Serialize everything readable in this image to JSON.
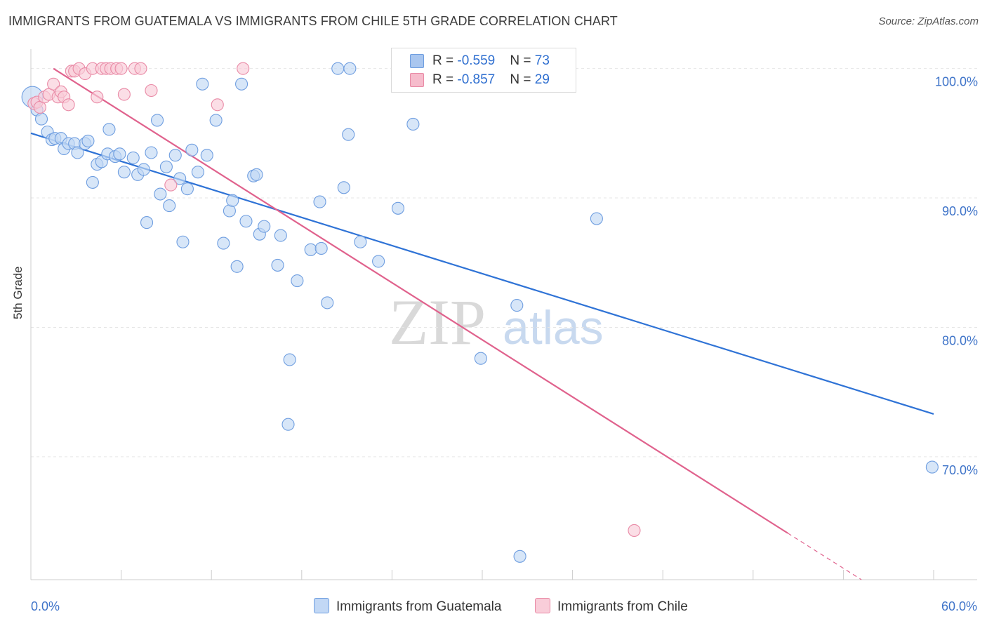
{
  "title": "IMMIGRANTS FROM GUATEMALA VS IMMIGRANTS FROM CHILE 5TH GRADE CORRELATION CHART",
  "source": "Source: ZipAtlas.com",
  "watermark": {
    "zip": "ZIP",
    "atlas": "atlas"
  },
  "stats": [
    {
      "r_label": "R = ",
      "r_value": "-0.559",
      "n_label": "N = ",
      "n_value": "73",
      "color": "#a9c6ef",
      "border": "#6f9ee0"
    },
    {
      "r_label": "R = ",
      "r_value": "-0.857",
      "n_label": "N = ",
      "n_value": "29",
      "color": "#f6bccc",
      "border": "#e98aa6"
    }
  ],
  "legend": [
    {
      "label": "Immigrants from Guatemala",
      "color": "#c2d8f5",
      "border": "#6f9ee0"
    },
    {
      "label": "Immigrants from Chile",
      "color": "#f9cdd9",
      "border": "#e98aa6"
    }
  ],
  "chart_data": {
    "type": "scatter",
    "xlabel": "",
    "ylabel": "5th Grade",
    "xlim": [
      0,
      60
    ],
    "ylim": [
      60.5,
      101.5
    ],
    "x_tick_labels": [
      "0.0%",
      "60.0%"
    ],
    "y_ticks": [
      70,
      80,
      90,
      100
    ],
    "y_tick_labels": [
      "70.0%",
      "80.0%",
      "90.0%",
      "100.0%"
    ],
    "grid": true,
    "legend_position": "bottom",
    "series": [
      {
        "name": "Immigrants from Guatemala",
        "point_color": "#c2d8f5",
        "stroke_color": "#6f9ee0",
        "line_color": "#2f73d6",
        "trend": {
          "x0": 0,
          "y0": 95.0,
          "x1": 60,
          "y1": 73.3
        },
        "points": [
          {
            "x": 0.1,
            "y": 97.8,
            "big": true
          },
          {
            "x": 0.4,
            "y": 96.8
          },
          {
            "x": 0.7,
            "y": 96.1
          },
          {
            "x": 1.1,
            "y": 95.1
          },
          {
            "x": 1.4,
            "y": 94.5
          },
          {
            "x": 1.6,
            "y": 94.6
          },
          {
            "x": 2.0,
            "y": 94.6
          },
          {
            "x": 2.2,
            "y": 93.8
          },
          {
            "x": 2.5,
            "y": 94.2
          },
          {
            "x": 2.9,
            "y": 94.2
          },
          {
            "x": 3.1,
            "y": 93.5
          },
          {
            "x": 3.6,
            "y": 94.2
          },
          {
            "x": 3.8,
            "y": 94.4
          },
          {
            "x": 4.1,
            "y": 91.2
          },
          {
            "x": 4.4,
            "y": 92.6
          },
          {
            "x": 4.7,
            "y": 92.8
          },
          {
            "x": 5.1,
            "y": 93.4
          },
          {
            "x": 5.2,
            "y": 95.3
          },
          {
            "x": 5.6,
            "y": 93.2
          },
          {
            "x": 5.9,
            "y": 93.4
          },
          {
            "x": 6.2,
            "y": 92.0
          },
          {
            "x": 6.8,
            "y": 93.1
          },
          {
            "x": 7.1,
            "y": 91.8
          },
          {
            "x": 7.5,
            "y": 92.2
          },
          {
            "x": 7.7,
            "y": 88.1
          },
          {
            "x": 8.0,
            "y": 93.5
          },
          {
            "x": 8.4,
            "y": 96.0
          },
          {
            "x": 8.6,
            "y": 90.3
          },
          {
            "x": 9.0,
            "y": 92.4
          },
          {
            "x": 9.2,
            "y": 89.4
          },
          {
            "x": 9.6,
            "y": 93.3
          },
          {
            "x": 9.9,
            "y": 91.5
          },
          {
            "x": 10.1,
            "y": 86.6
          },
          {
            "x": 10.4,
            "y": 90.7
          },
          {
            "x": 10.7,
            "y": 93.7
          },
          {
            "x": 11.1,
            "y": 92.0
          },
          {
            "x": 11.4,
            "y": 98.8
          },
          {
            "x": 11.7,
            "y": 93.3
          },
          {
            "x": 12.3,
            "y": 96.0
          },
          {
            "x": 12.8,
            "y": 86.5
          },
          {
            "x": 13.2,
            "y": 89.0
          },
          {
            "x": 13.4,
            "y": 89.8
          },
          {
            "x": 13.7,
            "y": 84.7
          },
          {
            "x": 14.0,
            "y": 98.8
          },
          {
            "x": 14.3,
            "y": 88.2
          },
          {
            "x": 14.8,
            "y": 91.7
          },
          {
            "x": 15.0,
            "y": 91.8
          },
          {
            "x": 15.2,
            "y": 87.2
          },
          {
            "x": 15.5,
            "y": 87.8
          },
          {
            "x": 16.4,
            "y": 84.8
          },
          {
            "x": 16.6,
            "y": 87.1
          },
          {
            "x": 17.1,
            "y": 72.5
          },
          {
            "x": 17.2,
            "y": 77.5
          },
          {
            "x": 17.7,
            "y": 83.6
          },
          {
            "x": 18.6,
            "y": 86.0
          },
          {
            "x": 19.2,
            "y": 89.7
          },
          {
            "x": 19.3,
            "y": 86.1
          },
          {
            "x": 19.7,
            "y": 81.9
          },
          {
            "x": 20.4,
            "y": 100.0
          },
          {
            "x": 20.8,
            "y": 90.8
          },
          {
            "x": 21.1,
            "y": 94.9
          },
          {
            "x": 21.2,
            "y": 100.0
          },
          {
            "x": 21.9,
            "y": 86.6
          },
          {
            "x": 23.1,
            "y": 85.1
          },
          {
            "x": 24.4,
            "y": 89.2
          },
          {
            "x": 25.4,
            "y": 95.7
          },
          {
            "x": 29.9,
            "y": 77.6
          },
          {
            "x": 32.3,
            "y": 81.7
          },
          {
            "x": 32.5,
            "y": 62.3
          },
          {
            "x": 35.0,
            "y": 100.0
          },
          {
            "x": 37.6,
            "y": 88.4
          },
          {
            "x": 59.9,
            "y": 69.2
          }
        ]
      },
      {
        "name": "Immigrants from Chile",
        "point_color": "#f9cdd9",
        "stroke_color": "#e98aa6",
        "line_color": "#e0628d",
        "trend": {
          "x0": 1.5,
          "y0": 100.0,
          "x1": 50.3,
          "y1": 64.1,
          "dash_to_x": 55.2,
          "dash_to_y": 60.5
        },
        "points": [
          {
            "x": 0.2,
            "y": 97.3
          },
          {
            "x": 0.4,
            "y": 97.4
          },
          {
            "x": 0.6,
            "y": 97.0
          },
          {
            "x": 0.9,
            "y": 97.8
          },
          {
            "x": 1.2,
            "y": 98.0
          },
          {
            "x": 1.5,
            "y": 98.8
          },
          {
            "x": 1.8,
            "y": 97.8
          },
          {
            "x": 2.0,
            "y": 98.2
          },
          {
            "x": 2.2,
            "y": 97.8
          },
          {
            "x": 2.5,
            "y": 97.2
          },
          {
            "x": 2.7,
            "y": 99.8
          },
          {
            "x": 2.9,
            "y": 99.8
          },
          {
            "x": 3.2,
            "y": 100.0
          },
          {
            "x": 3.6,
            "y": 99.6
          },
          {
            "x": 4.1,
            "y": 100.0
          },
          {
            "x": 4.4,
            "y": 97.8
          },
          {
            "x": 4.7,
            "y": 100.0
          },
          {
            "x": 5.0,
            "y": 100.0
          },
          {
            "x": 5.3,
            "y": 100.0
          },
          {
            "x": 5.7,
            "y": 100.0
          },
          {
            "x": 6.0,
            "y": 100.0
          },
          {
            "x": 6.2,
            "y": 98.0
          },
          {
            "x": 6.9,
            "y": 100.0
          },
          {
            "x": 7.3,
            "y": 100.0
          },
          {
            "x": 8.0,
            "y": 98.3
          },
          {
            "x": 9.3,
            "y": 91.0
          },
          {
            "x": 12.4,
            "y": 97.2
          },
          {
            "x": 14.1,
            "y": 100.0
          },
          {
            "x": 40.1,
            "y": 64.3
          }
        ]
      }
    ]
  }
}
